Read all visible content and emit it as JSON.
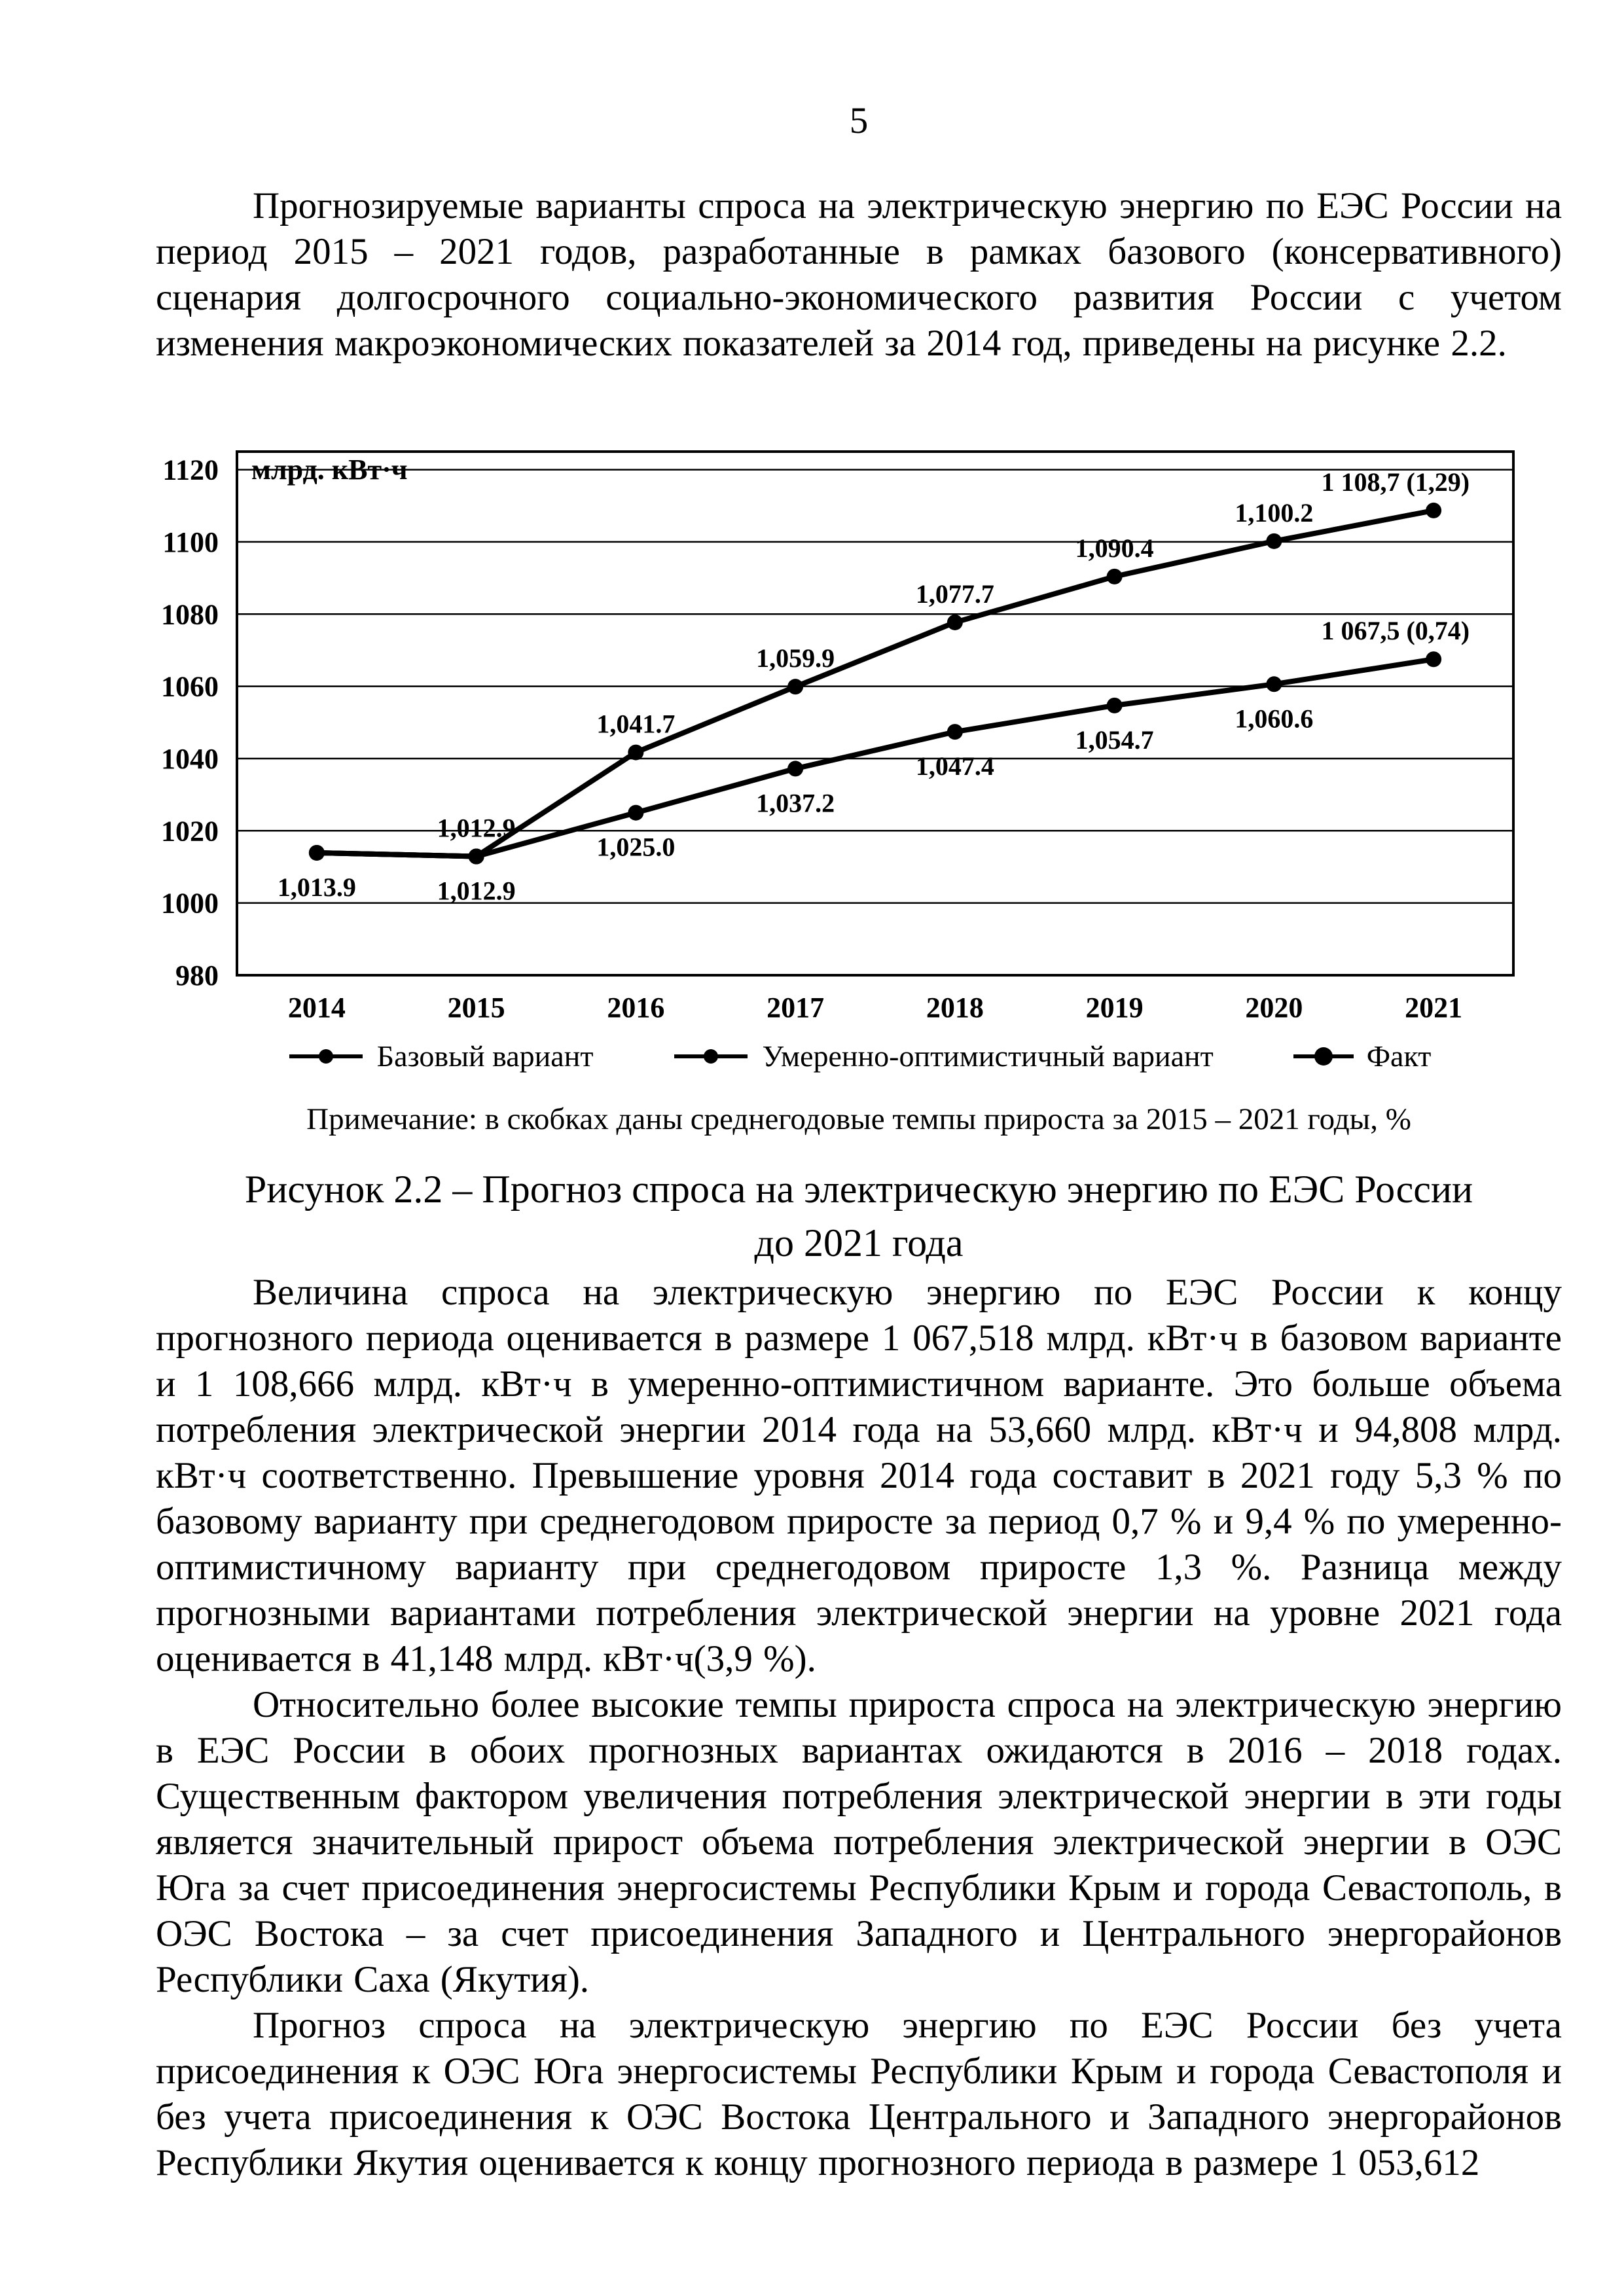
{
  "page": {
    "number": "5"
  },
  "paragraphs": {
    "p1": "Прогнозируемые варианты спроса на электрическую энергию по ЕЭС России на период 2015 – 2021 годов, разработанные в рамках базового (консервативного) сценария долгосрочного социально-экономического развития России с учетом изменения макроэкономических показателей за 2014 год, приведены на рисунке 2.2.",
    "p2": "Величина спроса на электрическую энергию по ЕЭС России к концу прогнозного периода оценивается в размере 1 067,518 млрд. кВт·ч в базовом варианте и 1 108,666 млрд. кВт·ч в умеренно-оптимистичном варианте. Это больше объема потребления электрической энергии 2014 года на 53,660 млрд. кВт·ч и 94,808 млрд. кВт·ч соответственно. Превышение уровня 2014 года составит в 2021 году 5,3 % по базовому варианту при среднегодовом приросте за период 0,7 % и 9,4 % по умеренно-оптимистичному варианту при среднегодовом приросте 1,3 %. Разница между прогнозными вариантами потребления электрической энергии на уровне 2021 года оценивается в 41,148 млрд. кВт·ч(3,9 %).",
    "p3": "Относительно более высокие темпы прироста спроса на электрическую энергию в ЕЭС России в обоих прогнозных вариантах ожидаются в 2016 – 2018 годах. Существенным фактором увеличения потребления электрической энергии в эти годы является значительный прирост объема потребления электрической энергии в ОЭС Юга за счет присоединения энергосистемы Республики Крым и города Севастополь, в ОЭС Востока – за счет присоединения Западного и Центрального энергорайонов Республики Саха (Якутия).",
    "p4": "Прогноз спроса на электрическую энергию по ЕЭС России без учета присоединения к ОЭС Юга энергосистемы Республики Крым и города Севастополя и без учета присоединения к ОЭС Востока Центрального и Западного энергорайонов Республики Якутия оценивается к концу прогнозного периода в размере 1 053,612"
  },
  "figure": {
    "note": "Примечание: в скобках даны среднегодовые темпы прироста за 2015 – 2021 годы, %",
    "caption": "Рисунок 2.2 – Прогноз спроса на электрическую энергию по ЕЭС России до 2021 года"
  },
  "chart_data": {
    "type": "line",
    "title": "",
    "unit_label": "млрд. кВт·ч",
    "categories": [
      "2014",
      "2015",
      "2016",
      "2017",
      "2018",
      "2019",
      "2020",
      "2021"
    ],
    "ylim": [
      980,
      1120
    ],
    "ytick_step": 20,
    "grid": true,
    "legend_position": "bottom",
    "line_color": "#000000",
    "series": [
      {
        "name": "Базовый вариант",
        "values": [
          1013.9,
          1012.9,
          1025.0,
          1037.2,
          1047.4,
          1054.7,
          1060.6,
          1067.5
        ],
        "labels": [
          "1,013.9",
          "1,012.9",
          "1,025.0",
          "1,037.2",
          "1,047.4",
          "1,054.7",
          "1,060.6",
          "1 067,5 (0,74)"
        ],
        "label_positions": [
          "below",
          "below",
          "below",
          "below",
          "below",
          "below",
          "below",
          "above"
        ]
      },
      {
        "name": "Умеренно-оптимистичный вариант",
        "values": [
          1013.9,
          1012.9,
          1041.7,
          1059.9,
          1077.7,
          1090.4,
          1100.2,
          1108.7
        ],
        "labels": [
          null,
          "1,012.9",
          "1,041.7",
          "1,059.9",
          "1,077.7",
          "1,090.4",
          "1,100.2",
          "1 108,7 (1,29)"
        ],
        "label_positions": [
          "above",
          "above",
          "above",
          "above",
          "above",
          "above",
          "above",
          "above"
        ]
      },
      {
        "name": "Факт",
        "values": [
          1013.9,
          1012.9,
          null,
          null,
          null,
          null,
          null,
          null
        ],
        "labels": [
          null,
          null,
          null,
          null,
          null,
          null,
          null,
          null
        ],
        "label_positions": []
      }
    ],
    "legend": [
      "Базовый вариант",
      "Умеренно-оптимистичный вариант",
      "Факт"
    ]
  }
}
